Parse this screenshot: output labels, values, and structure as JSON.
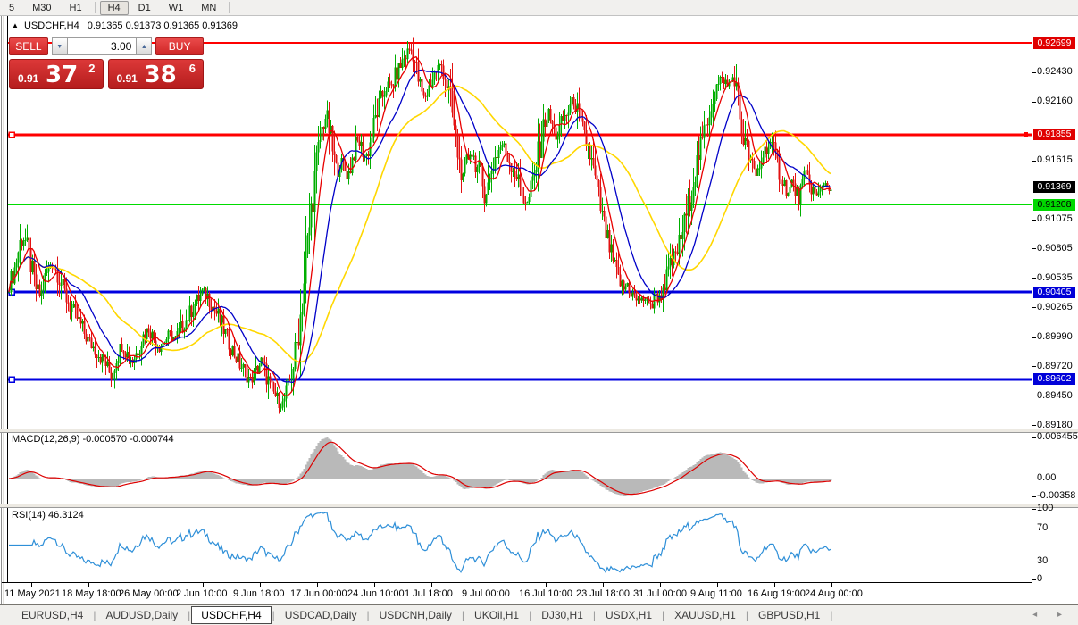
{
  "toolbar": {
    "timeframes": [
      "5",
      "M30",
      "H1",
      "H4",
      "D1",
      "W1",
      "MN"
    ],
    "active": "H4"
  },
  "chart": {
    "symbol_tf": "USDCHF,H4",
    "ohlc": "0.91365 0.91373 0.91365 0.91369"
  },
  "icons": {
    "up_triangle": "▲",
    "spin_up": "▲",
    "spin_down": "▼",
    "tab_prev": "◂",
    "tab_next": "▸"
  },
  "trade_widget": {
    "sell_label": "SELL",
    "buy_label": "BUY",
    "volume": "3.00",
    "sell_price_small": "0.91",
    "sell_price_big": "37",
    "sell_price_sup": "2",
    "buy_price_small": "0.91",
    "buy_price_big": "38",
    "buy_price_sup": "6"
  },
  "y_axis": {
    "ticks": [
      "0.92430",
      "0.92160",
      "0.91615",
      "0.91075",
      "0.90805",
      "0.90535",
      "0.90265",
      "0.89990",
      "0.89720",
      "0.89450",
      "0.89180"
    ],
    "badges": [
      {
        "text": "0.92699",
        "bg": "#e00000",
        "fg": "#ffffff"
      },
      {
        "text": "0.91855",
        "bg": "#e00000",
        "fg": "#ffffff"
      },
      {
        "text": "0.91369",
        "bg": "#000000",
        "fg": "#ffffff"
      },
      {
        "text": "0.91208",
        "bg": "#00d800",
        "fg": "#000000"
      },
      {
        "text": "0.90405",
        "bg": "#0000d8",
        "fg": "#ffffff"
      },
      {
        "text": "0.89602",
        "bg": "#0000d8",
        "fg": "#ffffff"
      }
    ]
  },
  "panes": {
    "macd": {
      "label": "MACD(12,26,9) -0.000570 -0.000744",
      "axis": [
        "0.006455",
        "0.00",
        "-0.00358"
      ]
    },
    "rsi": {
      "label": "RSI(14) 46.3124",
      "axis": [
        "100",
        "70",
        "30",
        "0"
      ]
    }
  },
  "time_axis": {
    "labels": [
      "11 May 2021",
      "18 May 18:00",
      "26 May 00:00",
      "2 Jun 10:00",
      "9 Jun 18:00",
      "17 Jun 00:00",
      "24 Jun 10:00",
      "1 Jul 18:00",
      "9 Jul 00:00",
      "16 Jul 10:00",
      "23 Jul 18:00",
      "31 Jul 00:00",
      "9 Aug 11:00",
      "16 Aug 19:00",
      "24 Aug 00:00"
    ]
  },
  "tabs": {
    "items": [
      "EURUSD,H4",
      "AUDUSD,Daily",
      "USDCHF,H4",
      "USDCAD,Daily",
      "USDCNH,Daily",
      "UKOil,H1",
      "DJ30,H1",
      "USDX,H1",
      "XAUUSD,H1",
      "GBPUSD,H1"
    ],
    "active": "USDCHF,H4"
  },
  "chart_data": {
    "type": "candlestick",
    "symbol": "USDCHF",
    "timeframe": "H4",
    "last_quote": {
      "bid": 0.91372,
      "ask": 0.91386,
      "close": 0.91369
    },
    "indicators": {
      "macd_params": "12,26,9",
      "macd_values": [
        -0.00057,
        -0.000744
      ],
      "rsi_params": "14",
      "rsi_value": 46.3124,
      "rsi_levels": [
        70,
        30
      ]
    },
    "levels": [
      {
        "price": 0.92699,
        "color": "#ff0000",
        "w": 2,
        "marker": false,
        "rmarker": false
      },
      {
        "price": 0.91855,
        "color": "#ff0000",
        "w": 3,
        "marker": true,
        "rmarker": true
      },
      {
        "price": 0.91208,
        "color": "#00dc00",
        "w": 2,
        "marker": false,
        "rmarker": false
      },
      {
        "price": 0.90405,
        "color": "#0000e0",
        "w": 3,
        "marker": true,
        "rmarker": false
      },
      {
        "price": 0.89602,
        "color": "#0000e0",
        "w": 3,
        "marker": true,
        "rmarker": false
      }
    ],
    "badge_prices": [
      0.92699,
      0.91855,
      0.91369,
      0.91208,
      0.90405,
      0.89602
    ],
    "y_tick_prices": [
      0.9243,
      0.9216,
      0.91615,
      0.91075,
      0.90805,
      0.90535,
      0.90265,
      0.8999,
      0.8972,
      0.8945,
      0.8918
    ],
    "price_path": [
      [
        10,
        0.9048
      ],
      [
        16,
        0.9062
      ],
      [
        22,
        0.9086
      ],
      [
        27,
        0.9091
      ],
      [
        33,
        0.907
      ],
      [
        39,
        0.9046
      ],
      [
        45,
        0.9036
      ],
      [
        51,
        0.9056
      ],
      [
        57,
        0.9068
      ],
      [
        63,
        0.906
      ],
      [
        70,
        0.9044
      ],
      [
        77,
        0.9028
      ],
      [
        84,
        0.902
      ],
      [
        91,
        0.9008
      ],
      [
        98,
        0.8996
      ],
      [
        105,
        0.8989
      ],
      [
        112,
        0.8981
      ],
      [
        118,
        0.8974
      ],
      [
        124,
        0.8963
      ],
      [
        130,
        0.8981
      ],
      [
        136,
        0.8992
      ],
      [
        142,
        0.8984
      ],
      [
        148,
        0.8977
      ],
      [
        154,
        0.8988
      ],
      [
        160,
        0.9
      ],
      [
        166,
        0.9007
      ],
      [
        172,
        0.8997
      ],
      [
        178,
        0.899
      ],
      [
        184,
        0.8996
      ],
      [
        190,
        0.9001
      ],
      [
        196,
        0.8997
      ],
      [
        202,
        0.9007
      ],
      [
        208,
        0.9015
      ],
      [
        214,
        0.9024
      ],
      [
        220,
        0.9032
      ],
      [
        226,
        0.904
      ],
      [
        232,
        0.9037
      ],
      [
        238,
        0.9027
      ],
      [
        244,
        0.9018
      ],
      [
        250,
        0.9006
      ],
      [
        256,
        0.8994
      ],
      [
        262,
        0.8984
      ],
      [
        268,
        0.8974
      ],
      [
        274,
        0.8967
      ],
      [
        280,
        0.8959
      ],
      [
        286,
        0.8967
      ],
      [
        292,
        0.8977
      ],
      [
        298,
        0.8963
      ],
      [
        304,
        0.895
      ],
      [
        310,
        0.8942
      ],
      [
        316,
        0.8937
      ],
      [
        322,
        0.8952
      ],
      [
        328,
        0.8974
      ],
      [
        333,
        0.8998
      ],
      [
        337,
        0.9026
      ],
      [
        341,
        0.9058
      ],
      [
        345,
        0.9092
      ],
      [
        349,
        0.9124
      ],
      [
        353,
        0.9152
      ],
      [
        357,
        0.9176
      ],
      [
        361,
        0.9194
      ],
      [
        365,
        0.9204
      ],
      [
        369,
        0.9186
      ],
      [
        373,
        0.9166
      ],
      [
        377,
        0.915
      ],
      [
        381,
        0.9161
      ],
      [
        385,
        0.9155
      ],
      [
        389,
        0.9147
      ],
      [
        393,
        0.9159
      ],
      [
        397,
        0.9174
      ],
      [
        401,
        0.918
      ],
      [
        405,
        0.9172
      ],
      [
        409,
        0.9164
      ],
      [
        413,
        0.9174
      ],
      [
        417,
        0.9189
      ],
      [
        421,
        0.9204
      ],
      [
        425,
        0.9214
      ],
      [
        429,
        0.9224
      ],
      [
        433,
        0.9231
      ],
      [
        437,
        0.9227
      ],
      [
        441,
        0.9237
      ],
      [
        445,
        0.9244
      ],
      [
        449,
        0.9251
      ],
      [
        453,
        0.9257
      ],
      [
        458,
        0.9264
      ],
      [
        462,
        0.9261
      ],
      [
        466,
        0.9244
      ],
      [
        470,
        0.9229
      ],
      [
        474,
        0.9219
      ],
      [
        478,
        0.9224
      ],
      [
        482,
        0.9234
      ],
      [
        486,
        0.9241
      ],
      [
        490,
        0.9247
      ],
      [
        494,
        0.9249
      ],
      [
        498,
        0.9239
      ],
      [
        502,
        0.9224
      ],
      [
        506,
        0.9204
      ],
      [
        510,
        0.9179
      ],
      [
        514,
        0.9159
      ],
      [
        518,
        0.9144
      ],
      [
        522,
        0.9159
      ],
      [
        526,
        0.9171
      ],
      [
        530,
        0.9164
      ],
      [
        534,
        0.9154
      ],
      [
        538,
        0.9147
      ],
      [
        542,
        0.9129
      ],
      [
        546,
        0.9139
      ],
      [
        550,
        0.9154
      ],
      [
        554,
        0.9164
      ],
      [
        558,
        0.9171
      ],
      [
        562,
        0.9177
      ],
      [
        566,
        0.9169
      ],
      [
        570,
        0.9161
      ],
      [
        574,
        0.9154
      ],
      [
        578,
        0.9147
      ],
      [
        582,
        0.9137
      ],
      [
        586,
        0.9127
      ],
      [
        590,
        0.9121
      ],
      [
        594,
        0.9134
      ],
      [
        598,
        0.9149
      ],
      [
        602,
        0.9167
      ],
      [
        606,
        0.9184
      ],
      [
        610,
        0.9199
      ],
      [
        614,
        0.9204
      ],
      [
        618,
        0.9194
      ],
      [
        622,
        0.9184
      ],
      [
        626,
        0.9191
      ],
      [
        630,
        0.9199
      ],
      [
        634,
        0.9204
      ],
      [
        638,
        0.9211
      ],
      [
        642,
        0.9217
      ],
      [
        646,
        0.9207
      ],
      [
        650,
        0.9194
      ],
      [
        654,
        0.9184
      ],
      [
        658,
        0.9174
      ],
      [
        662,
        0.9159
      ],
      [
        666,
        0.9144
      ],
      [
        670,
        0.9127
      ],
      [
        674,
        0.9109
      ],
      [
        678,
        0.9094
      ],
      [
        682,
        0.9081
      ],
      [
        686,
        0.9068
      ],
      [
        690,
        0.9057
      ],
      [
        694,
        0.9049
      ],
      [
        698,
        0.9043
      ],
      [
        702,
        0.9048
      ],
      [
        706,
        0.904
      ],
      [
        710,
        0.9036
      ],
      [
        714,
        0.9031
      ],
      [
        718,
        0.9037
      ],
      [
        722,
        0.9029
      ],
      [
        726,
        0.9034
      ],
      [
        730,
        0.9027
      ],
      [
        734,
        0.9039
      ],
      [
        738,
        0.9034
      ],
      [
        742,
        0.9044
      ],
      [
        746,
        0.9054
      ],
      [
        750,
        0.9064
      ],
      [
        754,
        0.9071
      ],
      [
        758,
        0.9079
      ],
      [
        762,
        0.9091
      ],
      [
        766,
        0.9104
      ],
      [
        770,
        0.9119
      ],
      [
        774,
        0.9134
      ],
      [
        778,
        0.9151
      ],
      [
        782,
        0.9167
      ],
      [
        786,
        0.9179
      ],
      [
        790,
        0.9194
      ],
      [
        794,
        0.9207
      ],
      [
        798,
        0.9219
      ],
      [
        802,
        0.9229
      ],
      [
        806,
        0.9234
      ],
      [
        810,
        0.9237
      ],
      [
        814,
        0.9229
      ],
      [
        818,
        0.9235
      ],
      [
        822,
        0.9239
      ],
      [
        826,
        0.9214
      ],
      [
        830,
        0.9189
      ],
      [
        834,
        0.9177
      ],
      [
        838,
        0.9167
      ],
      [
        842,
        0.9154
      ],
      [
        846,
        0.9147
      ],
      [
        850,
        0.9157
      ],
      [
        854,
        0.9167
      ],
      [
        858,
        0.9174
      ],
      [
        862,
        0.9177
      ],
      [
        866,
        0.9169
      ],
      [
        870,
        0.9157
      ],
      [
        874,
        0.9147
      ],
      [
        878,
        0.9139
      ],
      [
        882,
        0.9131
      ],
      [
        886,
        0.9141
      ],
      [
        890,
        0.9134
      ],
      [
        894,
        0.9127
      ],
      [
        898,
        0.9139
      ],
      [
        902,
        0.9149
      ],
      [
        906,
        0.9141
      ],
      [
        910,
        0.9134
      ],
      [
        914,
        0.9127
      ],
      [
        918,
        0.9134
      ],
      [
        922,
        0.9141
      ],
      [
        926,
        0.9139
      ],
      [
        930,
        0.9137
      ]
    ]
  }
}
